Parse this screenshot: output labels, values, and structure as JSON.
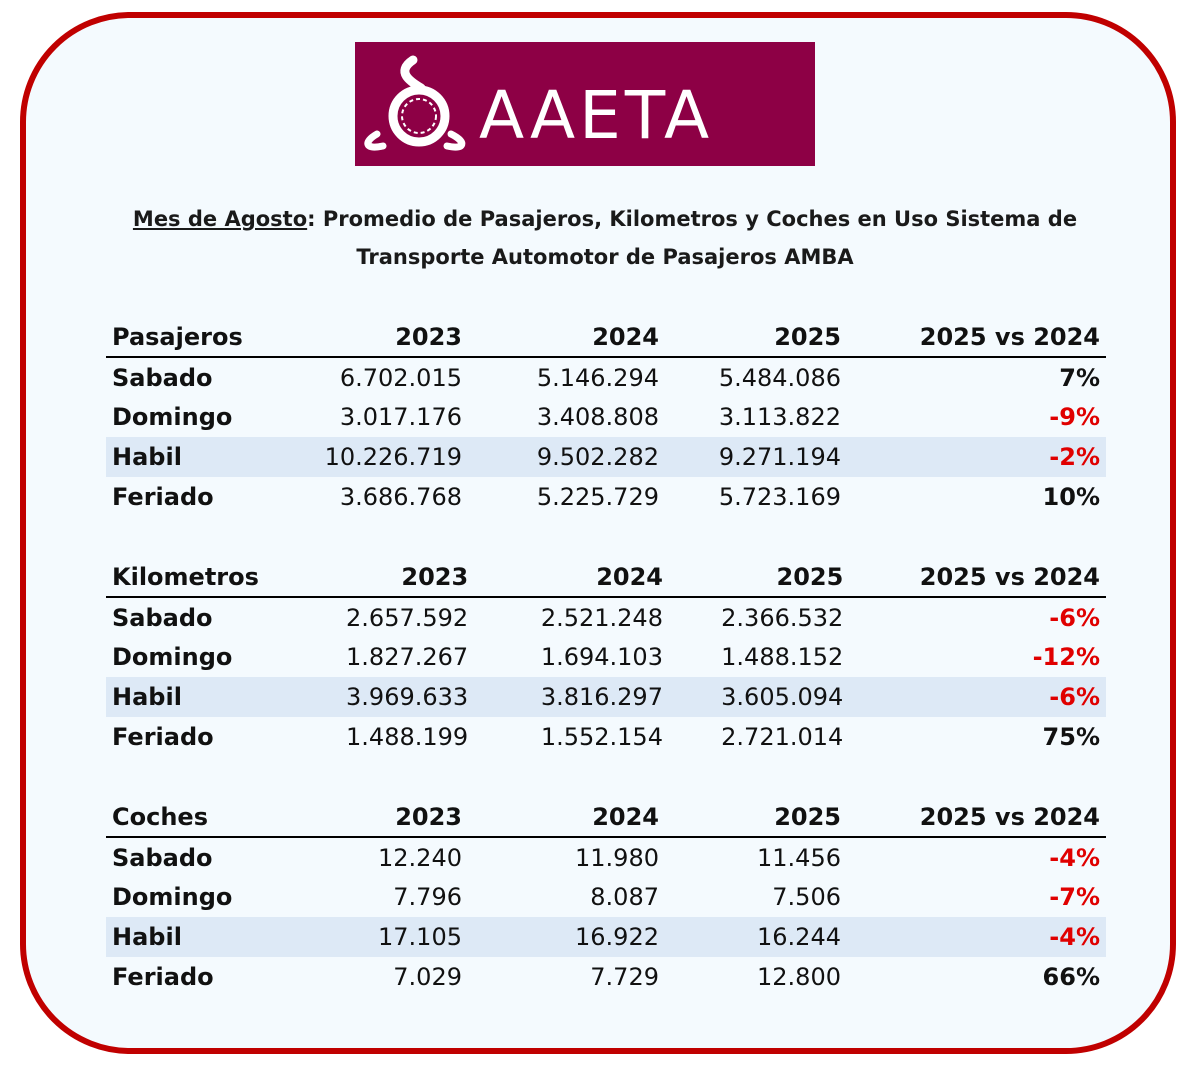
{
  "logo": {
    "text": "AAETA",
    "emblem": "aaeta-emblem-icon",
    "background": "#8d0045"
  },
  "title": {
    "underlined": "Mes de Agosto",
    "rest_line1": ": Promedio de Pasajeros, Kilometros y Coches en Uso Sistema de",
    "line2": "Transporte Automotor de Pasajeros AMBA"
  },
  "colors": {
    "frame": "#c00000",
    "negative": "#e00000",
    "shade": "#dde9f6"
  },
  "tables": [
    {
      "header": [
        "Pasajeros",
        "2023",
        "2024",
        "2025",
        "2025 vs 2024"
      ],
      "rows": [
        {
          "label": "Sabado",
          "v2023": "6.702.015",
          "v2024": "5.146.294",
          "v2025": "5.484.086",
          "change": "7%"
        },
        {
          "label": "Domingo",
          "v2023": "3.017.176",
          "v2024": "3.408.808",
          "v2025": "3.113.822",
          "change": "-9%"
        },
        {
          "label": "Habil",
          "v2023": "10.226.719",
          "v2024": "9.502.282",
          "v2025": "9.271.194",
          "change": "-2%"
        },
        {
          "label": "Feriado",
          "v2023": "3.686.768",
          "v2024": "5.225.729",
          "v2025": "5.723.169",
          "change": "10%"
        }
      ]
    },
    {
      "header": [
        "Kilometros",
        "2023",
        "2024",
        "2025",
        "2025 vs 2024"
      ],
      "rows": [
        {
          "label": "Sabado",
          "v2023": "2.657.592",
          "v2024": "2.521.248",
          "v2025": "2.366.532",
          "change": "-6%"
        },
        {
          "label": "Domingo",
          "v2023": "1.827.267",
          "v2024": "1.694.103",
          "v2025": "1.488.152",
          "change": "-12%"
        },
        {
          "label": "Habil",
          "v2023": "3.969.633",
          "v2024": "3.816.297",
          "v2025": "3.605.094",
          "change": "-6%"
        },
        {
          "label": "Feriado",
          "v2023": "1.488.199",
          "v2024": "1.552.154",
          "v2025": "2.721.014",
          "change": "75%"
        }
      ]
    },
    {
      "header": [
        "Coches",
        "2023",
        "2024",
        "2025",
        "2025 vs 2024"
      ],
      "rows": [
        {
          "label": "Sabado",
          "v2023": "12.240",
          "v2024": "11.980",
          "v2025": "11.456",
          "change": "-4%"
        },
        {
          "label": "Domingo",
          "v2023": "7.796",
          "v2024": "8.087",
          "v2025": "7.506",
          "change": "-7%"
        },
        {
          "label": "Habil",
          "v2023": "17.105",
          "v2024": "16.922",
          "v2025": "16.244",
          "change": "-4%"
        },
        {
          "label": "Feriado",
          "v2023": "7.029",
          "v2024": "7.729",
          "v2025": "12.800",
          "change": "66%"
        }
      ]
    }
  ]
}
